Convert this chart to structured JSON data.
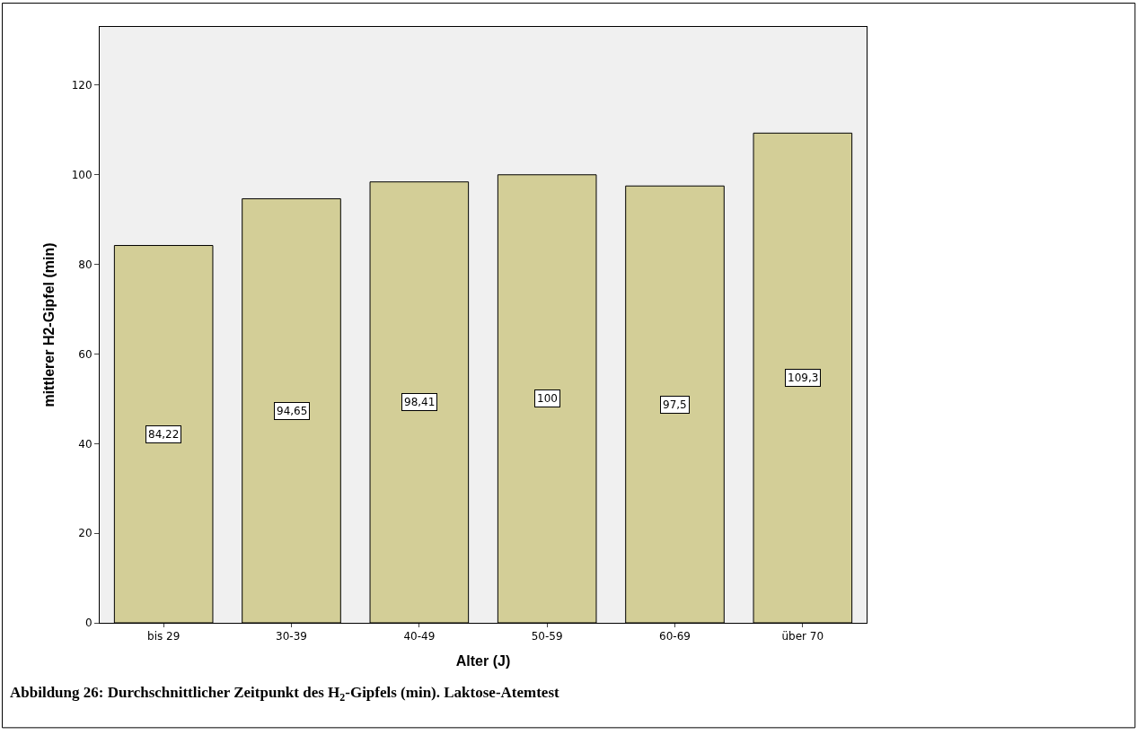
{
  "chart_data": {
    "type": "bar",
    "categories": [
      "bis 29",
      "30-39",
      "40-49",
      "50-59",
      "60-69",
      "über 70"
    ],
    "values": [
      84.22,
      94.65,
      98.41,
      100,
      97.5,
      109.3
    ],
    "value_labels": [
      "84,22",
      "94,65",
      "98,41",
      "100",
      "97,5",
      "109,3"
    ],
    "color": "#d3ce97",
    "xlabel": "Alter (J)",
    "ylabel": "mittlerer H2-Gipfel (min)",
    "ylim": [
      0,
      133
    ],
    "yticks": [
      0,
      20,
      40,
      60,
      80,
      100,
      120
    ],
    "grid": false,
    "annotations": [
      "Abbildung 26: Durchschnittlicher Zeitpunkt des H$_{2}$-Gipfels (min). Laktose-Atemtest"
    ]
  }
}
